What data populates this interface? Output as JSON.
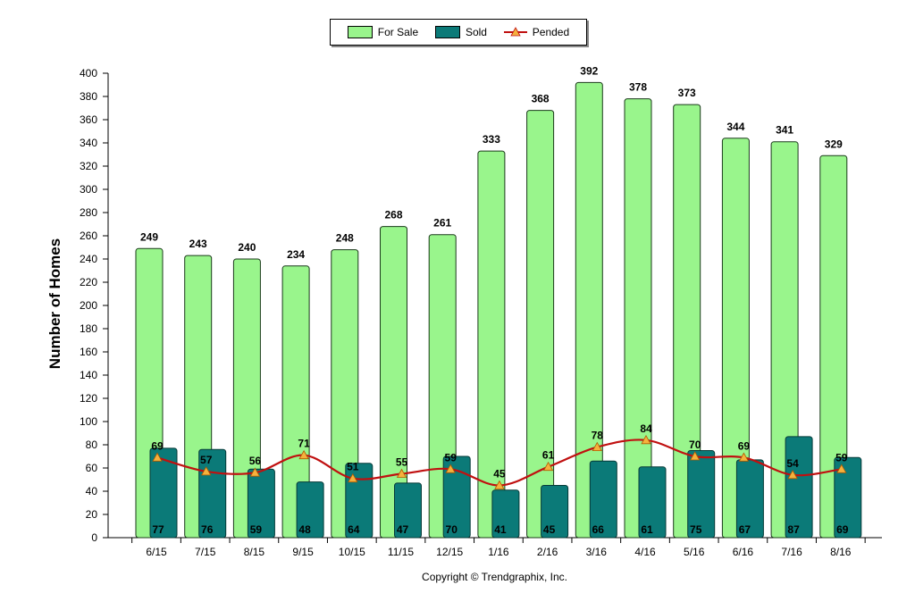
{
  "legend": {
    "for_sale": "For Sale",
    "sold": "Sold",
    "pended": "Pended"
  },
  "colors": {
    "for_sale": "#99f58c",
    "sold": "#0b7a78",
    "pended": "#c01010",
    "marker": "#f5b13d"
  },
  "copyright": "Copyright © Trendgraphix, Inc.",
  "chart_data": {
    "type": "bar",
    "title": "",
    "xlabel": "",
    "ylabel": "Number of Homes",
    "ylim": [
      0,
      400
    ],
    "yticks": [
      0,
      20,
      40,
      60,
      80,
      100,
      120,
      140,
      160,
      180,
      200,
      220,
      240,
      260,
      280,
      300,
      320,
      340,
      360,
      380,
      400
    ],
    "categories": [
      "6/15",
      "7/15",
      "8/15",
      "9/15",
      "10/15",
      "11/15",
      "12/15",
      "1/16",
      "2/16",
      "3/16",
      "4/16",
      "5/16",
      "6/16",
      "7/16",
      "8/16"
    ],
    "series": [
      {
        "name": "For Sale",
        "type": "bar",
        "values": [
          249,
          243,
          240,
          234,
          248,
          268,
          261,
          333,
          368,
          392,
          378,
          373,
          344,
          341,
          329
        ]
      },
      {
        "name": "Sold",
        "type": "bar",
        "values": [
          77,
          76,
          59,
          48,
          64,
          47,
          70,
          41,
          45,
          66,
          61,
          75,
          67,
          87,
          69
        ]
      },
      {
        "name": "Pended",
        "type": "line",
        "values": [
          69,
          57,
          56,
          71,
          51,
          55,
          59,
          45,
          61,
          78,
          84,
          70,
          69,
          54,
          59
        ]
      }
    ],
    "grid": false,
    "legend_position": "top-center"
  }
}
